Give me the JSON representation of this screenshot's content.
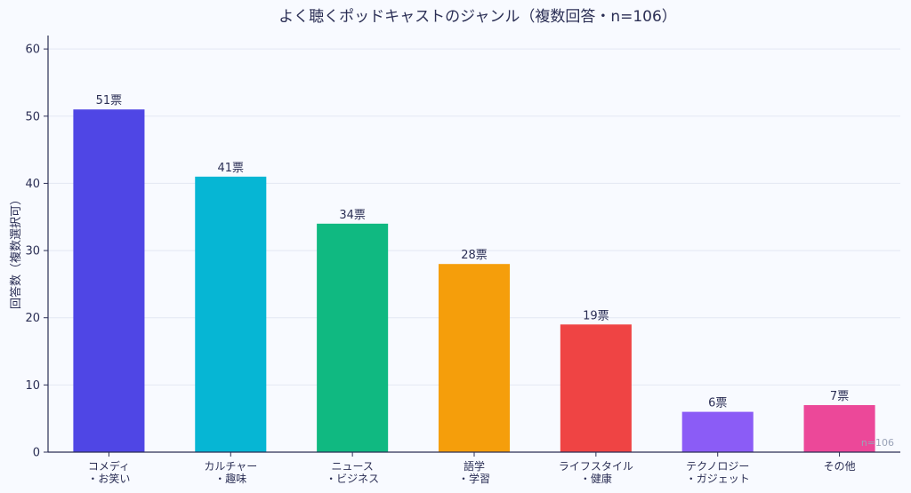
{
  "chart_data": {
    "type": "bar",
    "title": "よく聴くポッドキャストのジャンル（複数回答・n=106）",
    "ylabel": "回答数（複数選択可）",
    "xlabel": "",
    "ylim": [
      0,
      62
    ],
    "yticks": [
      0,
      10,
      20,
      30,
      40,
      50,
      60
    ],
    "grid": true,
    "categories": [
      [
        "コメディ",
        "・お笑い"
      ],
      [
        "カルチャー",
        "・趣味"
      ],
      [
        "ニュース",
        "・ビジネス"
      ],
      [
        "語学",
        "・学習"
      ],
      [
        "ライフスタイル",
        "・健康"
      ],
      [
        "テクノロジー",
        "・ガジェット"
      ],
      [
        "その他"
      ]
    ],
    "values": [
      51,
      41,
      34,
      28,
      19,
      6,
      7
    ],
    "value_labels": [
      "51票",
      "41票",
      "34票",
      "28票",
      "19票",
      "6票",
      "7票"
    ],
    "colors": [
      "#4F46E5",
      "#06B6D4",
      "#10B981",
      "#F59E0B",
      "#EF4444",
      "#8B5CF6",
      "#EC4899"
    ],
    "note": "n=106"
  }
}
